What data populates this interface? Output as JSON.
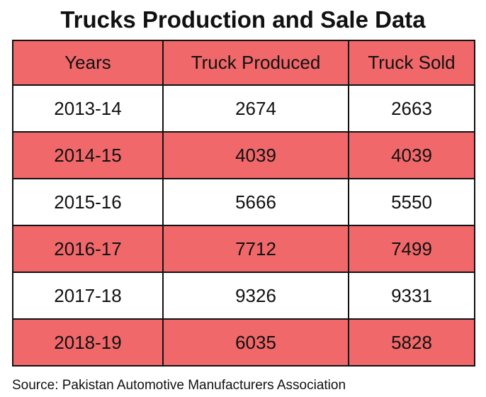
{
  "header": {
    "title": "Trucks Production and Sale Data"
  },
  "table": {
    "columns": [
      "Years",
      "Truck Produced",
      "Truck Sold"
    ],
    "rows": [
      [
        "2013-14",
        2674,
        2663
      ],
      [
        "2014-15",
        4039,
        4039
      ],
      [
        "2015-16",
        5666,
        5550
      ],
      [
        "2016-17",
        7712,
        7499
      ],
      [
        "2017-18",
        9326,
        9331
      ],
      [
        "2018-19",
        6035,
        5828
      ]
    ]
  },
  "footer": {
    "source": "Source: Pakistan Automotive Manufacturers Association"
  }
}
